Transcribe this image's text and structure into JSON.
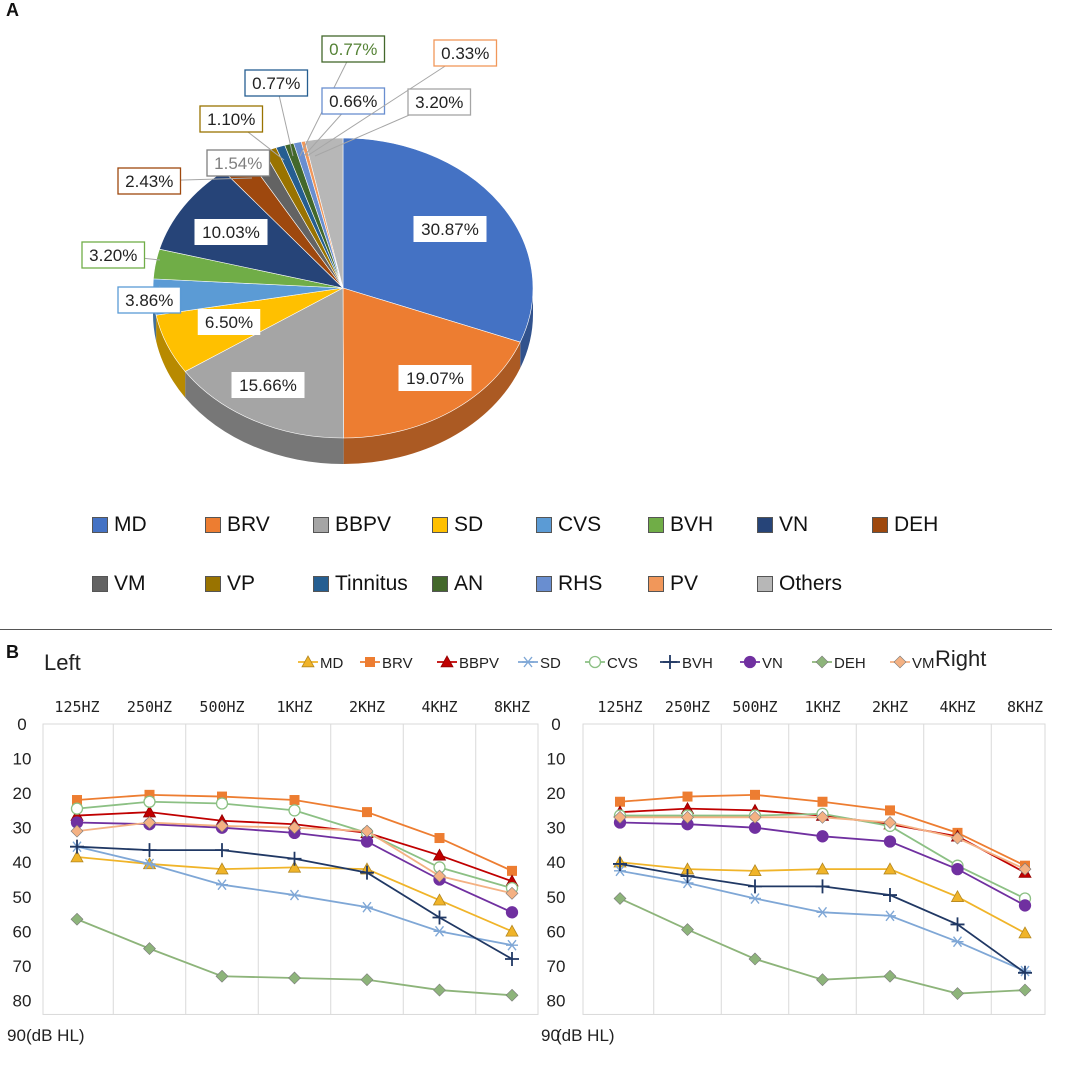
{
  "panelA": {
    "label": "A",
    "legend_rows": [
      [
        "MD",
        "BRV",
        "BBPV",
        "SD",
        "CVS",
        "BVH",
        "VN",
        "DEH"
      ],
      [
        "VM",
        "VP",
        "Tinnitus",
        "AN",
        "RHS",
        "PV",
        "Others"
      ]
    ]
  },
  "panelB": {
    "label": "B",
    "left_title": "Left",
    "right_title": "Right",
    "y_unit": "(dB HL)"
  },
  "chart_data": [
    {
      "type": "pie",
      "title": "",
      "slices": [
        {
          "name": "MD",
          "value": 30.87,
          "label": "30.87%",
          "color": "#4472C4"
        },
        {
          "name": "BRV",
          "value": 19.07,
          "label": "19.07%",
          "color": "#ED7D31"
        },
        {
          "name": "BBPV",
          "value": 15.66,
          "label": "15.66%",
          "color": "#A5A5A5"
        },
        {
          "name": "SD",
          "value": 6.5,
          "label": "6.50%",
          "color": "#FFC000"
        },
        {
          "name": "CVS",
          "value": 3.86,
          "label": "3.86%",
          "color": "#5B9BD5"
        },
        {
          "name": "BVH",
          "value": 3.2,
          "label": "3.20%",
          "color": "#70AD47"
        },
        {
          "name": "VN",
          "value": 10.03,
          "label": "10.03%",
          "color": "#264478"
        },
        {
          "name": "DEH",
          "value": 2.43,
          "label": "2.43%",
          "color": "#9E480E"
        },
        {
          "name": "VM",
          "value": 1.54,
          "label": "1.54%",
          "color": "#636363"
        },
        {
          "name": "VP",
          "value": 1.1,
          "label": "1.10%",
          "color": "#997300"
        },
        {
          "name": "Tinnitus",
          "value": 0.77,
          "label": "0.77%",
          "color": "#255E91"
        },
        {
          "name": "AN",
          "value": 0.77,
          "label": "0.77%",
          "color": "#43682B"
        },
        {
          "name": "RHS",
          "value": 0.66,
          "label": "0.66%",
          "color": "#698ED0"
        },
        {
          "name": "PV",
          "value": 0.33,
          "label": "0.33%",
          "color": "#F1975A"
        },
        {
          "name": "Others",
          "value": 3.2,
          "label": "3.20%",
          "color": "#B7B7B7"
        }
      ]
    },
    {
      "type": "line",
      "title": "Left",
      "categories": [
        "125HZ",
        "250HZ",
        "500HZ",
        "1KHZ",
        "2KHZ",
        "4KHZ",
        "8KHZ"
      ],
      "yticks": [
        "0",
        "10",
        "20",
        "30",
        "40",
        "50",
        "60",
        "70",
        "80",
        "90"
      ],
      "ylim": [
        0,
        90
      ],
      "y_inverted": true,
      "series": [
        {
          "name": "MD",
          "values": [
            38.5,
            40.5,
            42,
            41.5,
            42,
            51,
            60
          ],
          "color": "#F0B429",
          "marker": "triangle"
        },
        {
          "name": "BRV",
          "values": [
            22,
            20.5,
            21,
            22,
            25.5,
            33,
            42.5
          ],
          "color": "#ED7D31",
          "marker": "square"
        },
        {
          "name": "BBPV",
          "values": [
            26.5,
            25.5,
            28,
            29,
            31.5,
            38,
            45.5
          ],
          "color": "#C00000",
          "marker": "triangle"
        },
        {
          "name": "SD",
          "values": [
            35.5,
            40.5,
            46.5,
            49.5,
            53,
            60,
            64
          ],
          "color": "#7FA7D6",
          "marker": "asterisk"
        },
        {
          "name": "CVS",
          "values": [
            24.5,
            22.5,
            23,
            25,
            31.5,
            41.5,
            47.5
          ],
          "color": "#8CC084",
          "marker": "circle"
        },
        {
          "name": "BVH",
          "values": [
            35.5,
            36.5,
            36.5,
            39,
            43,
            56,
            68
          ],
          "color": "#203864",
          "marker": "plus"
        },
        {
          "name": "VN",
          "values": [
            28.5,
            29,
            30,
            31.5,
            34,
            45,
            54.5
          ],
          "color": "#7030A0",
          "marker": "circle"
        },
        {
          "name": "DEH",
          "values": [
            56.5,
            65,
            73,
            73.5,
            74,
            77,
            78.5
          ],
          "color": "#8DB47A",
          "marker": "diamond"
        },
        {
          "name": "VM",
          "values": [
            31,
            28.5,
            29.5,
            30,
            31,
            44,
            49
          ],
          "color": "#F4B183",
          "marker": "diamond"
        }
      ]
    },
    {
      "type": "line",
      "title": "Right",
      "categories": [
        "125HZ",
        "250HZ",
        "500HZ",
        "1KHZ",
        "2KHZ",
        "4KHZ",
        "8KHZ"
      ],
      "yticks": [
        "0",
        "10",
        "20",
        "30",
        "40",
        "50",
        "60",
        "70",
        "80",
        "90"
      ],
      "ylim": [
        0,
        90
      ],
      "y_inverted": true,
      "series": [
        {
          "name": "MD",
          "values": [
            40,
            42,
            42.5,
            42,
            42,
            50,
            60.5
          ],
          "color": "#F0B429",
          "marker": "triangle"
        },
        {
          "name": "BRV",
          "values": [
            22.5,
            21,
            20.5,
            22.5,
            25,
            31.5,
            41
          ],
          "color": "#ED7D31",
          "marker": "square"
        },
        {
          "name": "BBPV",
          "values": [
            25.5,
            24.5,
            25,
            26.5,
            29,
            32.5,
            43
          ],
          "color": "#C00000",
          "marker": "triangle"
        },
        {
          "name": "SD",
          "values": [
            42.5,
            46,
            50.5,
            54.5,
            55.5,
            63,
            71.5
          ],
          "color": "#7FA7D6",
          "marker": "asterisk"
        },
        {
          "name": "CVS",
          "values": [
            26.5,
            26.5,
            26.5,
            26,
            29.5,
            41,
            50.5
          ],
          "color": "#8CC084",
          "marker": "circle"
        },
        {
          "name": "BVH",
          "values": [
            40.5,
            44,
            47,
            47,
            49.5,
            58,
            72
          ],
          "color": "#203864",
          "marker": "plus"
        },
        {
          "name": "VN",
          "values": [
            28.5,
            29,
            30,
            32.5,
            34,
            42,
            52.5
          ],
          "color": "#7030A0",
          "marker": "circle"
        },
        {
          "name": "DEH",
          "values": [
            50.5,
            59.5,
            68,
            74,
            73,
            78,
            77
          ],
          "color": "#8DB47A",
          "marker": "diamond"
        },
        {
          "name": "VM",
          "values": [
            27,
            27,
            27,
            27,
            28.5,
            33,
            42
          ],
          "color": "#F4B183",
          "marker": "diamond"
        }
      ]
    }
  ]
}
